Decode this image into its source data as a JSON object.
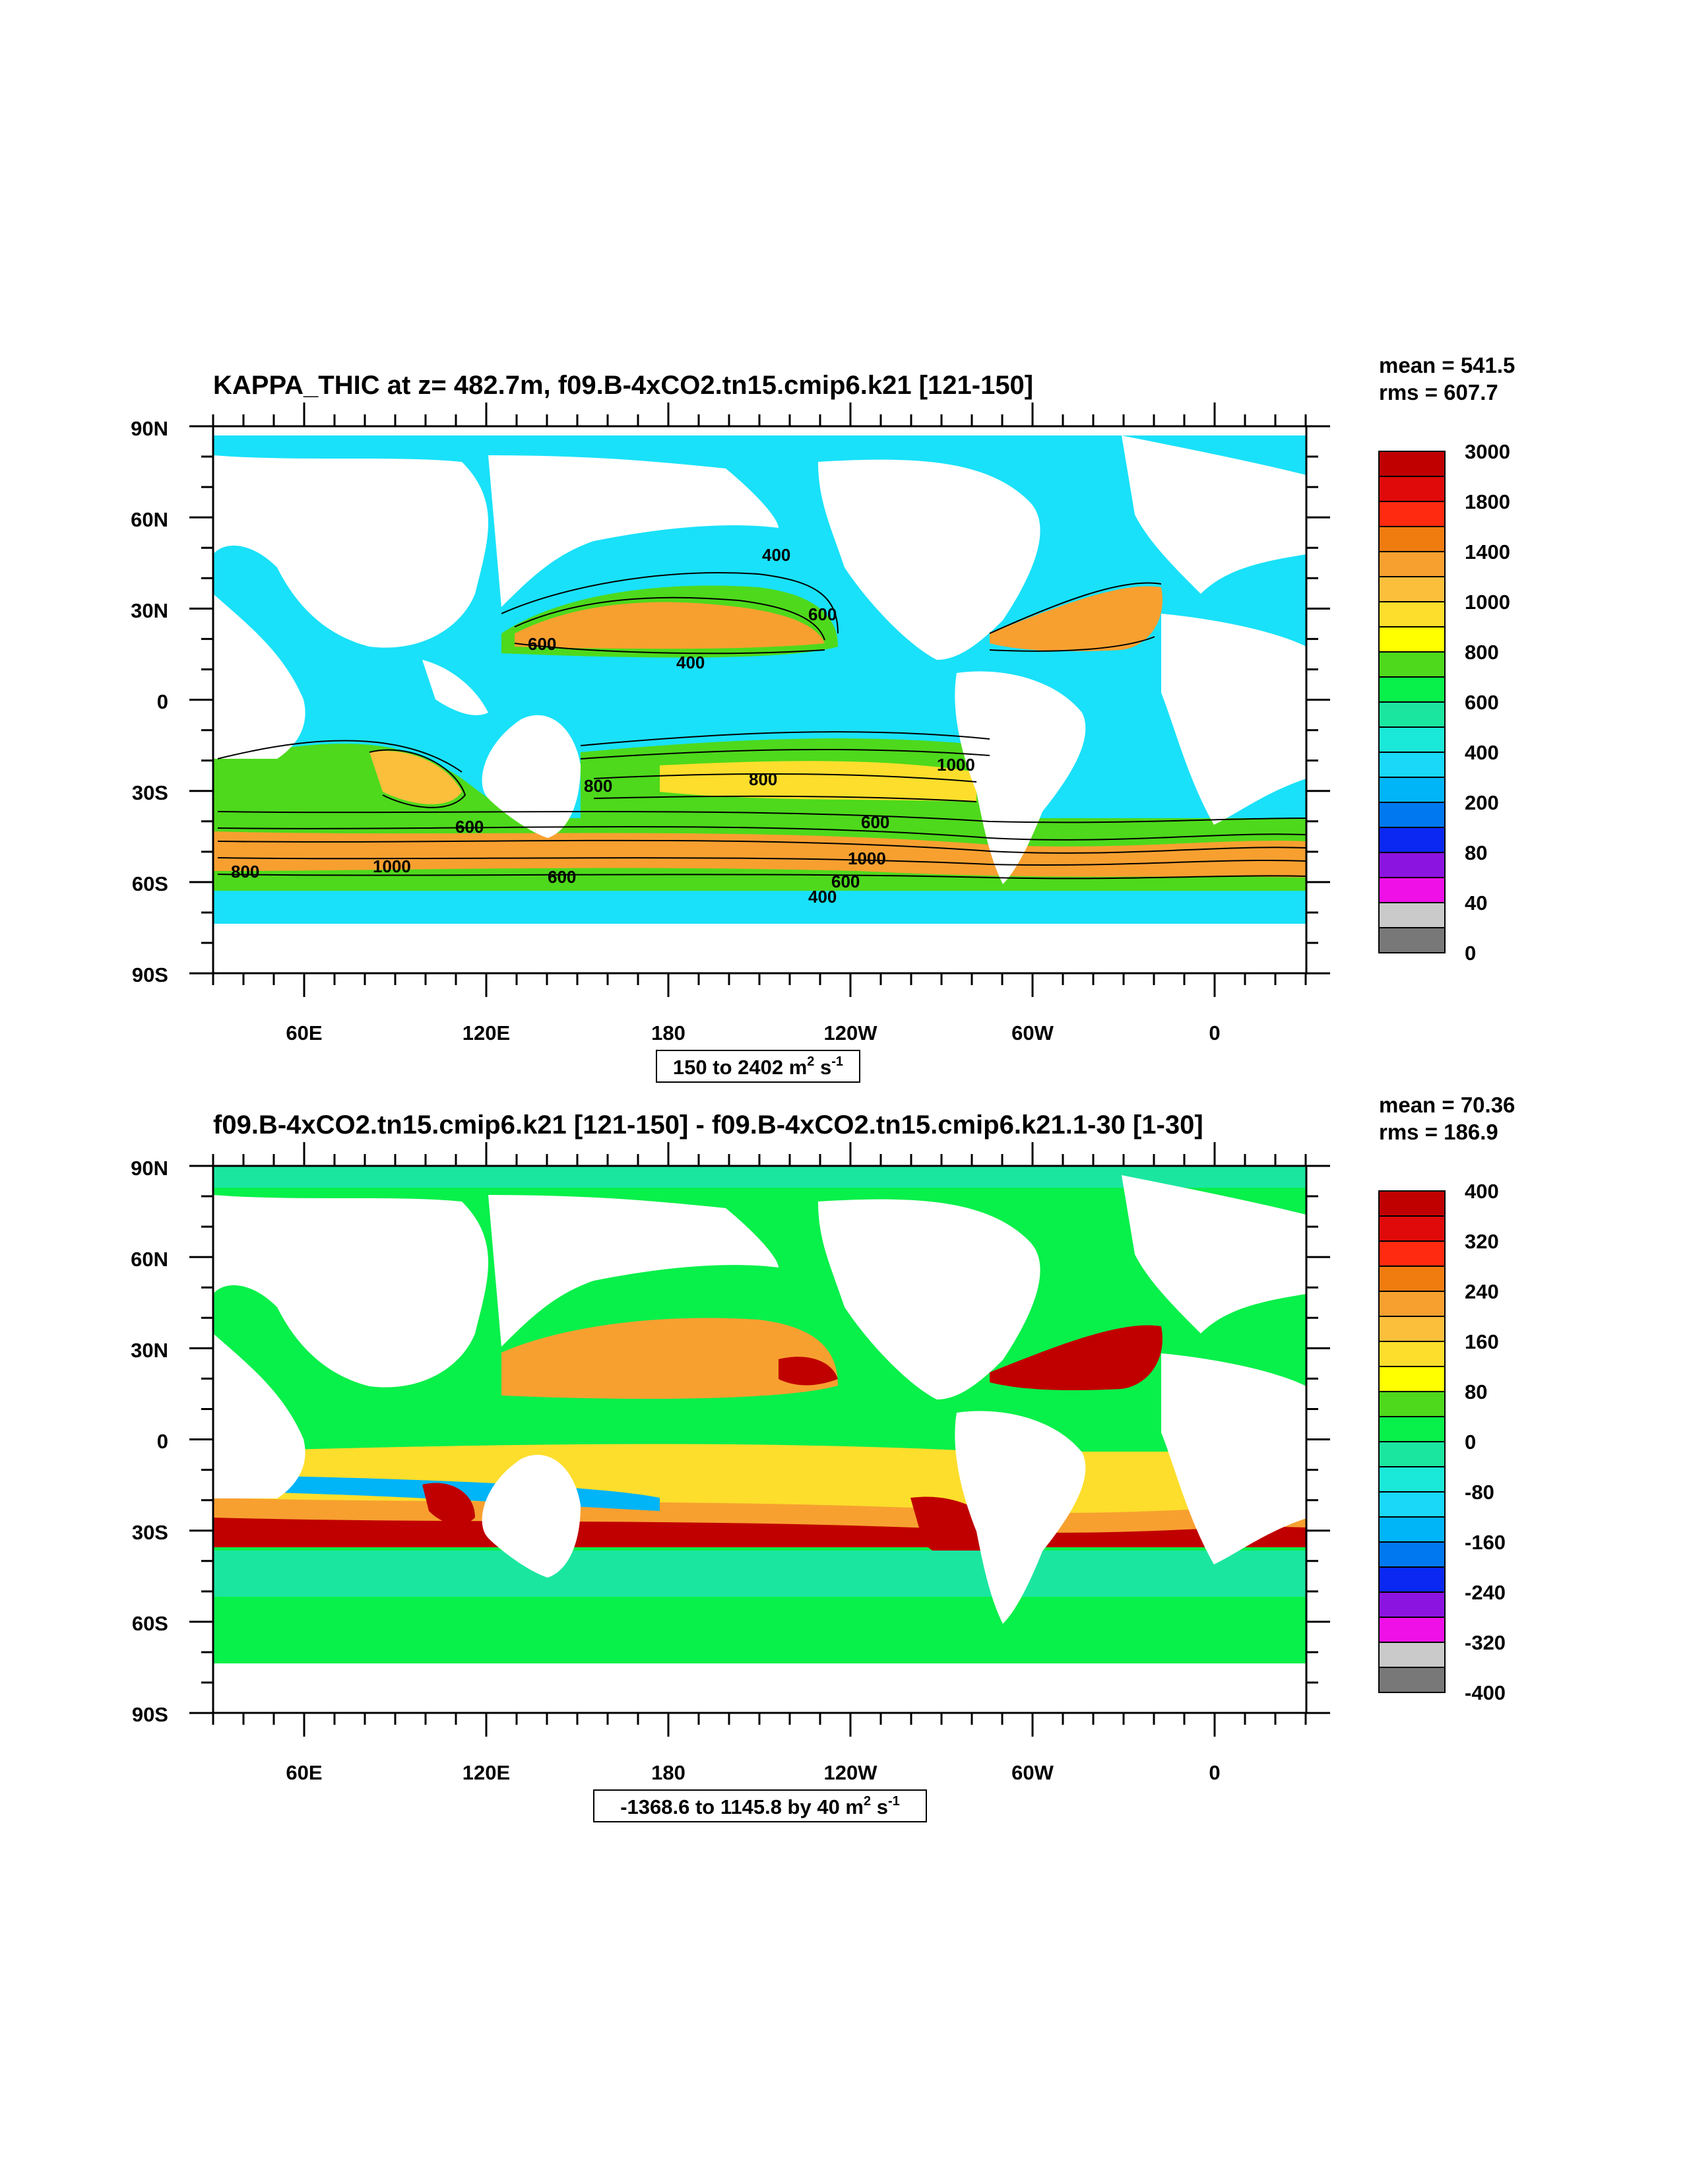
{
  "panels": [
    {
      "title": "KAPPA_THIC at z= 482.7m, f09.B-4xCO2.tn15.cmip6.k21 [121-150]",
      "stats": {
        "mean": "mean = 541.5",
        "rms": "rms = 607.7"
      },
      "range_label": {
        "text": "150 to 2402 m",
        "sup1": "2",
        "mid": " s",
        "sup2": "-1"
      },
      "colorbar_labels": [
        "3000",
        "1800",
        "1400",
        "1000",
        "800",
        "600",
        "400",
        "200",
        "80",
        "40",
        "0"
      ],
      "colorbar_colors": [
        "#c00000",
        "#e00a0a",
        "#ff2a10",
        "#f07c10",
        "#f7a030",
        "#fbbf3c",
        "#fdde2c",
        "#ffff00",
        "#4ed91c",
        "#08f04a",
        "#1be6a0",
        "#1ae8d8",
        "#19d8f8",
        "#00b4f8",
        "#0078f0",
        "#0a28f2",
        "#8c14e0",
        "#ee10e6",
        "#cacaca",
        "#787878"
      ],
      "contour_labels": [
        "400",
        "400",
        "600",
        "800",
        "1000",
        "600",
        "600",
        "800",
        "1000",
        "1000",
        "600",
        "400",
        "600",
        "600",
        "800"
      ],
      "field": {
        "background": "#19e1f9",
        "bands": [
          "#fbbf3c",
          "#f7a030",
          "#4ed91c",
          "#1be6a0"
        ]
      }
    },
    {
      "title": "f09.B-4xCO2.tn15.cmip6.k21 [121-150] - f09.B-4xCO2.tn15.cmip6.k21.1-30 [1-30]",
      "stats": {
        "mean": "mean = 70.36",
        "rms": "rms = 186.9"
      },
      "range_label": {
        "text": "-1368.6 to 1145.8 by 40 m",
        "sup1": "2",
        "mid": " s",
        "sup2": "-1"
      },
      "colorbar_labels": [
        "400",
        "320",
        "240",
        "160",
        "80",
        "0",
        "-80",
        "-160",
        "-240",
        "-320",
        "-400"
      ],
      "colorbar_colors": [
        "#c00000",
        "#e00a0a",
        "#ff2a10",
        "#f07c10",
        "#f7a030",
        "#fbbf3c",
        "#fdde2c",
        "#ffff00",
        "#4ed91c",
        "#08f04a",
        "#1be6a0",
        "#1ae8d8",
        "#19d8f8",
        "#00b4f8",
        "#0078f0",
        "#0a28f2",
        "#8c14e0",
        "#ee10e6",
        "#cacaca",
        "#787878"
      ],
      "field": {
        "background": "#08f04a",
        "bands": [
          "#fdde2c",
          "#f07c10",
          "#c00000",
          "#1ae8d8"
        ]
      }
    }
  ],
  "axes": {
    "lat_labels": [
      "90N",
      "60N",
      "30N",
      "0",
      "30S",
      "60S",
      "90S"
    ],
    "lon_labels": [
      "60E",
      "120E",
      "180",
      "120W",
      "60W",
      "0"
    ]
  }
}
